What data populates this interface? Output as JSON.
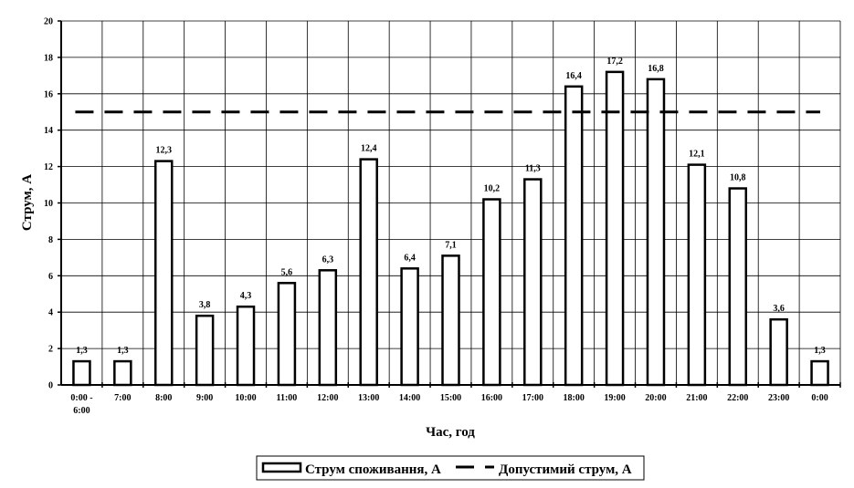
{
  "chart_data": {
    "type": "bar",
    "categories": [
      "0:00 - 6:00",
      "7:00",
      "8:00",
      "9:00",
      "10:00",
      "11:00",
      "12:00",
      "13:00",
      "14:00",
      "15:00",
      "16:00",
      "17:00",
      "18:00",
      "19:00",
      "20:00",
      "21:00",
      "22:00",
      "23:00",
      "0:00"
    ],
    "series": [
      {
        "name": "Струм споживання, А",
        "values": [
          1.3,
          1.3,
          12.3,
          3.8,
          4.3,
          5.6,
          6.3,
          12.4,
          6.4,
          7.1,
          10.2,
          11.3,
          16.4,
          17.2,
          16.8,
          12.1,
          10.8,
          3.6,
          1.3
        ],
        "labels": [
          "1,3",
          "1,3",
          "12,3",
          "3,8",
          "4,3",
          "5,6",
          "6,3",
          "12,4",
          "6,4",
          "7,1",
          "10,2",
          "11,3",
          "16,4",
          "17,2",
          "16,8",
          "12,1",
          "10,8",
          "3,6",
          "1,3"
        ]
      }
    ],
    "reference_line": {
      "name": "Допустимий струм, А",
      "value": 15,
      "style": "dashed"
    },
    "xlabel": "Час, год",
    "ylabel": "Струм, А",
    "ylim": [
      0,
      20
    ],
    "yticks": [
      0,
      2,
      4,
      6,
      8,
      10,
      12,
      14,
      16,
      18,
      20
    ],
    "grid": true,
    "legend_position": "bottom",
    "colors": {
      "bar_fill": "#ffffff",
      "bar_stroke": "#000000",
      "grid": "#000000",
      "reference": "#000000"
    }
  }
}
